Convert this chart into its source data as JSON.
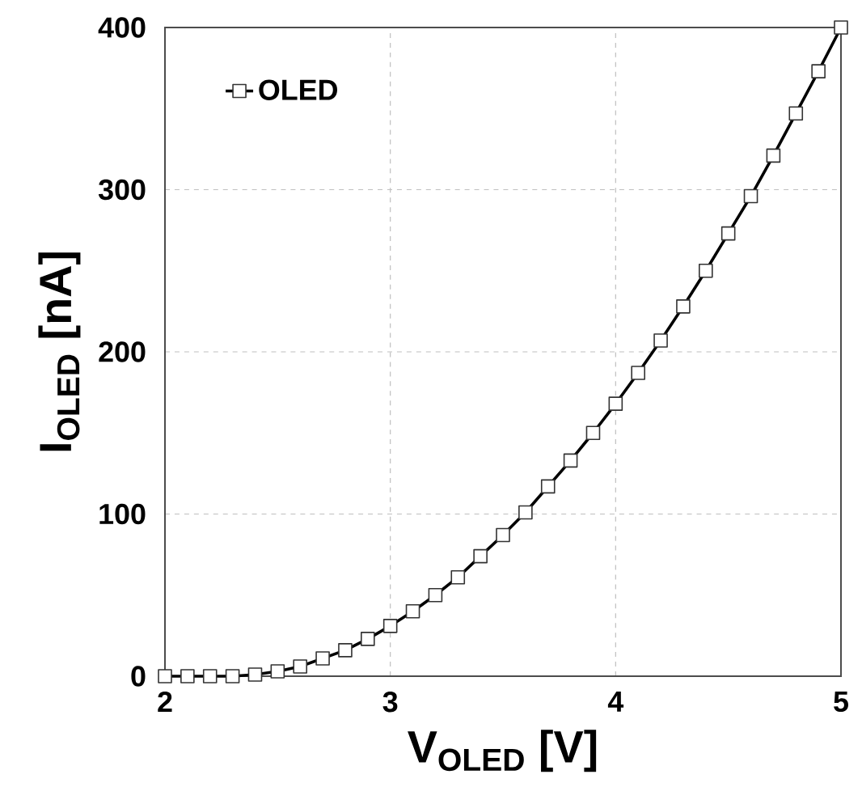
{
  "chart_data": {
    "type": "line",
    "xlabel": "V$_{OLED}$ [V]",
    "ylabel": "I$_{OLED}$ [nA]",
    "x": [
      2.0,
      2.1,
      2.2,
      2.3,
      2.4,
      2.5,
      2.6,
      2.7,
      2.8,
      2.9,
      3.0,
      3.1,
      3.2,
      3.3,
      3.4,
      3.5,
      3.6,
      3.7,
      3.8,
      3.9,
      4.0,
      4.1,
      4.2,
      4.3,
      4.4,
      4.5,
      4.6,
      4.7,
      4.8,
      4.9,
      5.0
    ],
    "series": [
      {
        "name": "OLED",
        "color": "#000000",
        "values": [
          0,
          0,
          0,
          0,
          1,
          3,
          6,
          11,
          16,
          23,
          31,
          40,
          50,
          61,
          74,
          87,
          101,
          117,
          133,
          150,
          168,
          187,
          207,
          228,
          250,
          273,
          296,
          321,
          347,
          373,
          400
        ]
      }
    ],
    "xlim": [
      2,
      5
    ],
    "ylim": [
      0,
      400
    ],
    "xticks": [
      2,
      3,
      4,
      5
    ],
    "yticks": [
      0,
      100,
      200,
      300,
      400
    ],
    "grid": true,
    "legend": "top left",
    "marker": "square",
    "line_style": "solid"
  }
}
